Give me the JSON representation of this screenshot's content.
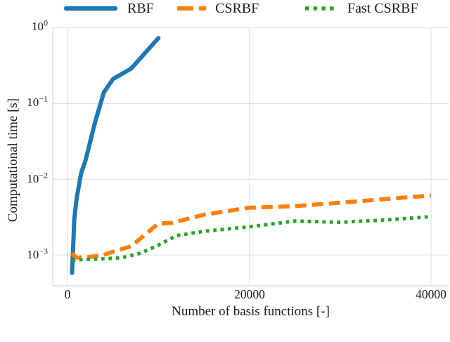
{
  "legend": {
    "items": [
      {
        "label": "RBF",
        "color": "#1f77b4",
        "style": "solid"
      },
      {
        "label": "CSRBF",
        "color": "#ff7f0e",
        "style": "dashed"
      },
      {
        "label": "Fast CSRBF",
        "color": "#2ca02c",
        "style": "dotted"
      }
    ]
  },
  "chart_data": {
    "type": "line",
    "title": "",
    "xlabel": "Number of basis functions [-]",
    "ylabel": "Computational time [s]",
    "x_scale": "linear",
    "y_scale": "log",
    "xlim": [
      -1600,
      42000
    ],
    "ylim": [
      0.00039,
      1.0
    ],
    "grid": true,
    "grid_color": "#e4e4e4",
    "legend_position": "top",
    "x_ticks": {
      "values": [
        0,
        20000,
        40000
      ],
      "labels": [
        "0",
        "20000",
        "40000"
      ]
    },
    "y_ticks": {
      "values": [
        1,
        0.1,
        0.01,
        0.001
      ],
      "labels": [
        {
          "base": "10",
          "exp": "0"
        },
        {
          "base": "10",
          "exp": "−1"
        },
        {
          "base": "10",
          "exp": "−2"
        },
        {
          "base": "10",
          "exp": "−3"
        }
      ]
    },
    "series": [
      {
        "name": "RBF",
        "color": "#1f77b4",
        "style": "solid",
        "x": [
          500,
          750,
          1000,
          1500,
          2000,
          3000,
          4000,
          5000,
          7000,
          10000
        ],
        "y": [
          0.00058,
          0.003,
          0.0055,
          0.012,
          0.018,
          0.055,
          0.14,
          0.21,
          0.29,
          0.73
        ]
      },
      {
        "name": "CSRBF",
        "color": "#ff7f0e",
        "style": "dashed",
        "x": [
          500,
          1000,
          2000,
          3000,
          4000,
          5000,
          7000,
          10000,
          11500,
          15000,
          20000,
          25000,
          30000,
          40000
        ],
        "y": [
          0.00105,
          0.00092,
          0.00093,
          0.00096,
          0.001,
          0.0011,
          0.0013,
          0.0026,
          0.00265,
          0.0034,
          0.0042,
          0.0044,
          0.0049,
          0.0061
        ]
      },
      {
        "name": "Fast CSRBF",
        "color": "#2ca02c",
        "style": "dotted",
        "x": [
          500,
          1000,
          2000,
          4000,
          6000,
          8000,
          10000,
          12000,
          15000,
          20000,
          25000,
          30000,
          35000,
          40000
        ],
        "y": [
          0.00084,
          0.00086,
          0.00087,
          0.00089,
          0.00092,
          0.00105,
          0.00135,
          0.0018,
          0.00205,
          0.00235,
          0.0028,
          0.0027,
          0.0029,
          0.0032
        ]
      }
    ]
  }
}
